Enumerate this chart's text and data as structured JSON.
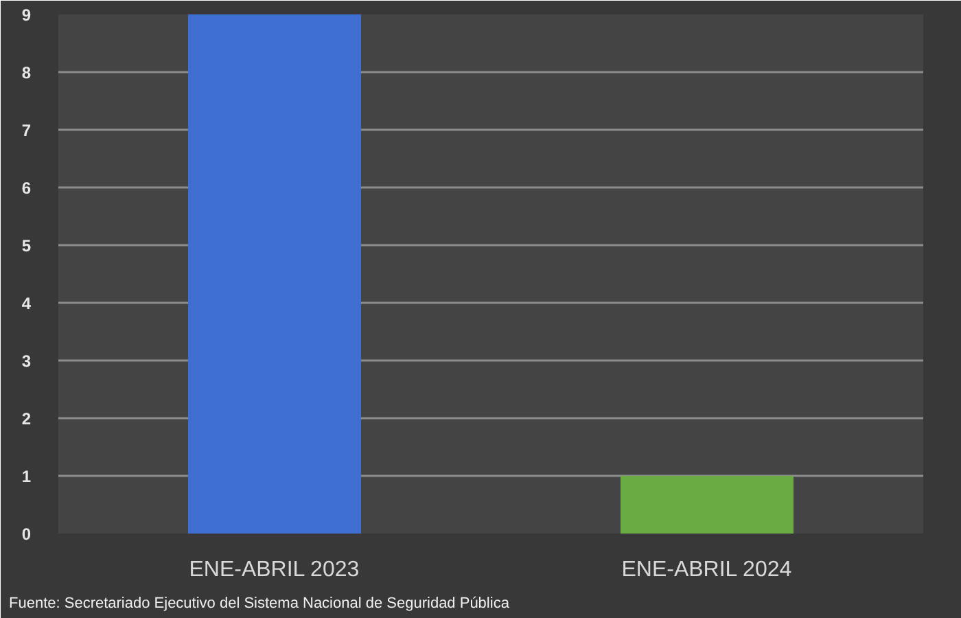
{
  "chart_data": {
    "type": "bar",
    "categories": [
      "ENE-ABRIL 2023",
      "ENE-ABRIL 2024"
    ],
    "values": [
      9,
      1
    ],
    "colors": [
      "#3f6fd0",
      "#6aab44"
    ],
    "ylim": [
      0,
      9
    ],
    "yticks": [
      0,
      1,
      2,
      3,
      4,
      5,
      6,
      7,
      8,
      9
    ],
    "grid": "y",
    "annotations": [
      "Fuente: Secretariado Ejecutivo del Sistema Nacional de Seguridad Pública"
    ]
  }
}
